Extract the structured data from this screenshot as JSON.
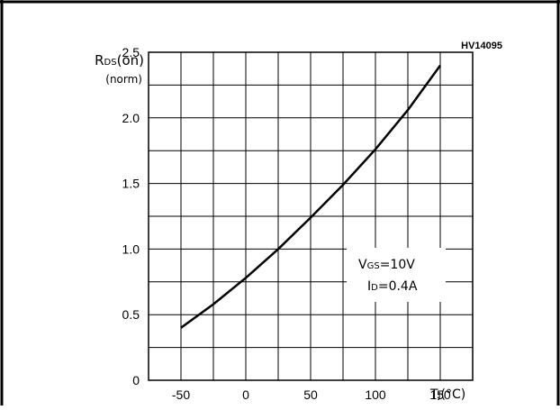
{
  "chart_data": {
    "type": "line",
    "code": "HV14095",
    "ylabel_main": "R",
    "ylabel_sub": "DS",
    "ylabel_tail": "(on)",
    "ylabel_unit": "(norm)",
    "xlabel_main": "T",
    "xlabel_sub": "J",
    "xlabel_tail": "(°C)",
    "xlim": [
      -75,
      175
    ],
    "ylim": [
      0,
      2.5
    ],
    "x_ticks": [
      -50,
      0,
      50,
      100,
      150
    ],
    "x_tick_labels": [
      "-50",
      "0",
      "50",
      "100",
      "150"
    ],
    "y_ticks": [
      0,
      0.5,
      1.0,
      1.5,
      2.0,
      2.5
    ],
    "y_tick_labels": [
      "0",
      "0.5",
      "1.0",
      "1.5",
      "2.0",
      "2.5"
    ],
    "grid": true,
    "conditions": [
      {
        "main": "V",
        "sub": "GS",
        "tail": "=10V"
      },
      {
        "main": "I",
        "sub": "D",
        "tail": "=0.4A"
      }
    ],
    "series": [
      {
        "x": [
          -50,
          -25,
          0,
          25,
          50,
          75,
          100,
          125,
          150
        ],
        "y": [
          0.4,
          0.58,
          0.78,
          1.0,
          1.24,
          1.49,
          1.76,
          2.06,
          2.4
        ]
      }
    ]
  }
}
